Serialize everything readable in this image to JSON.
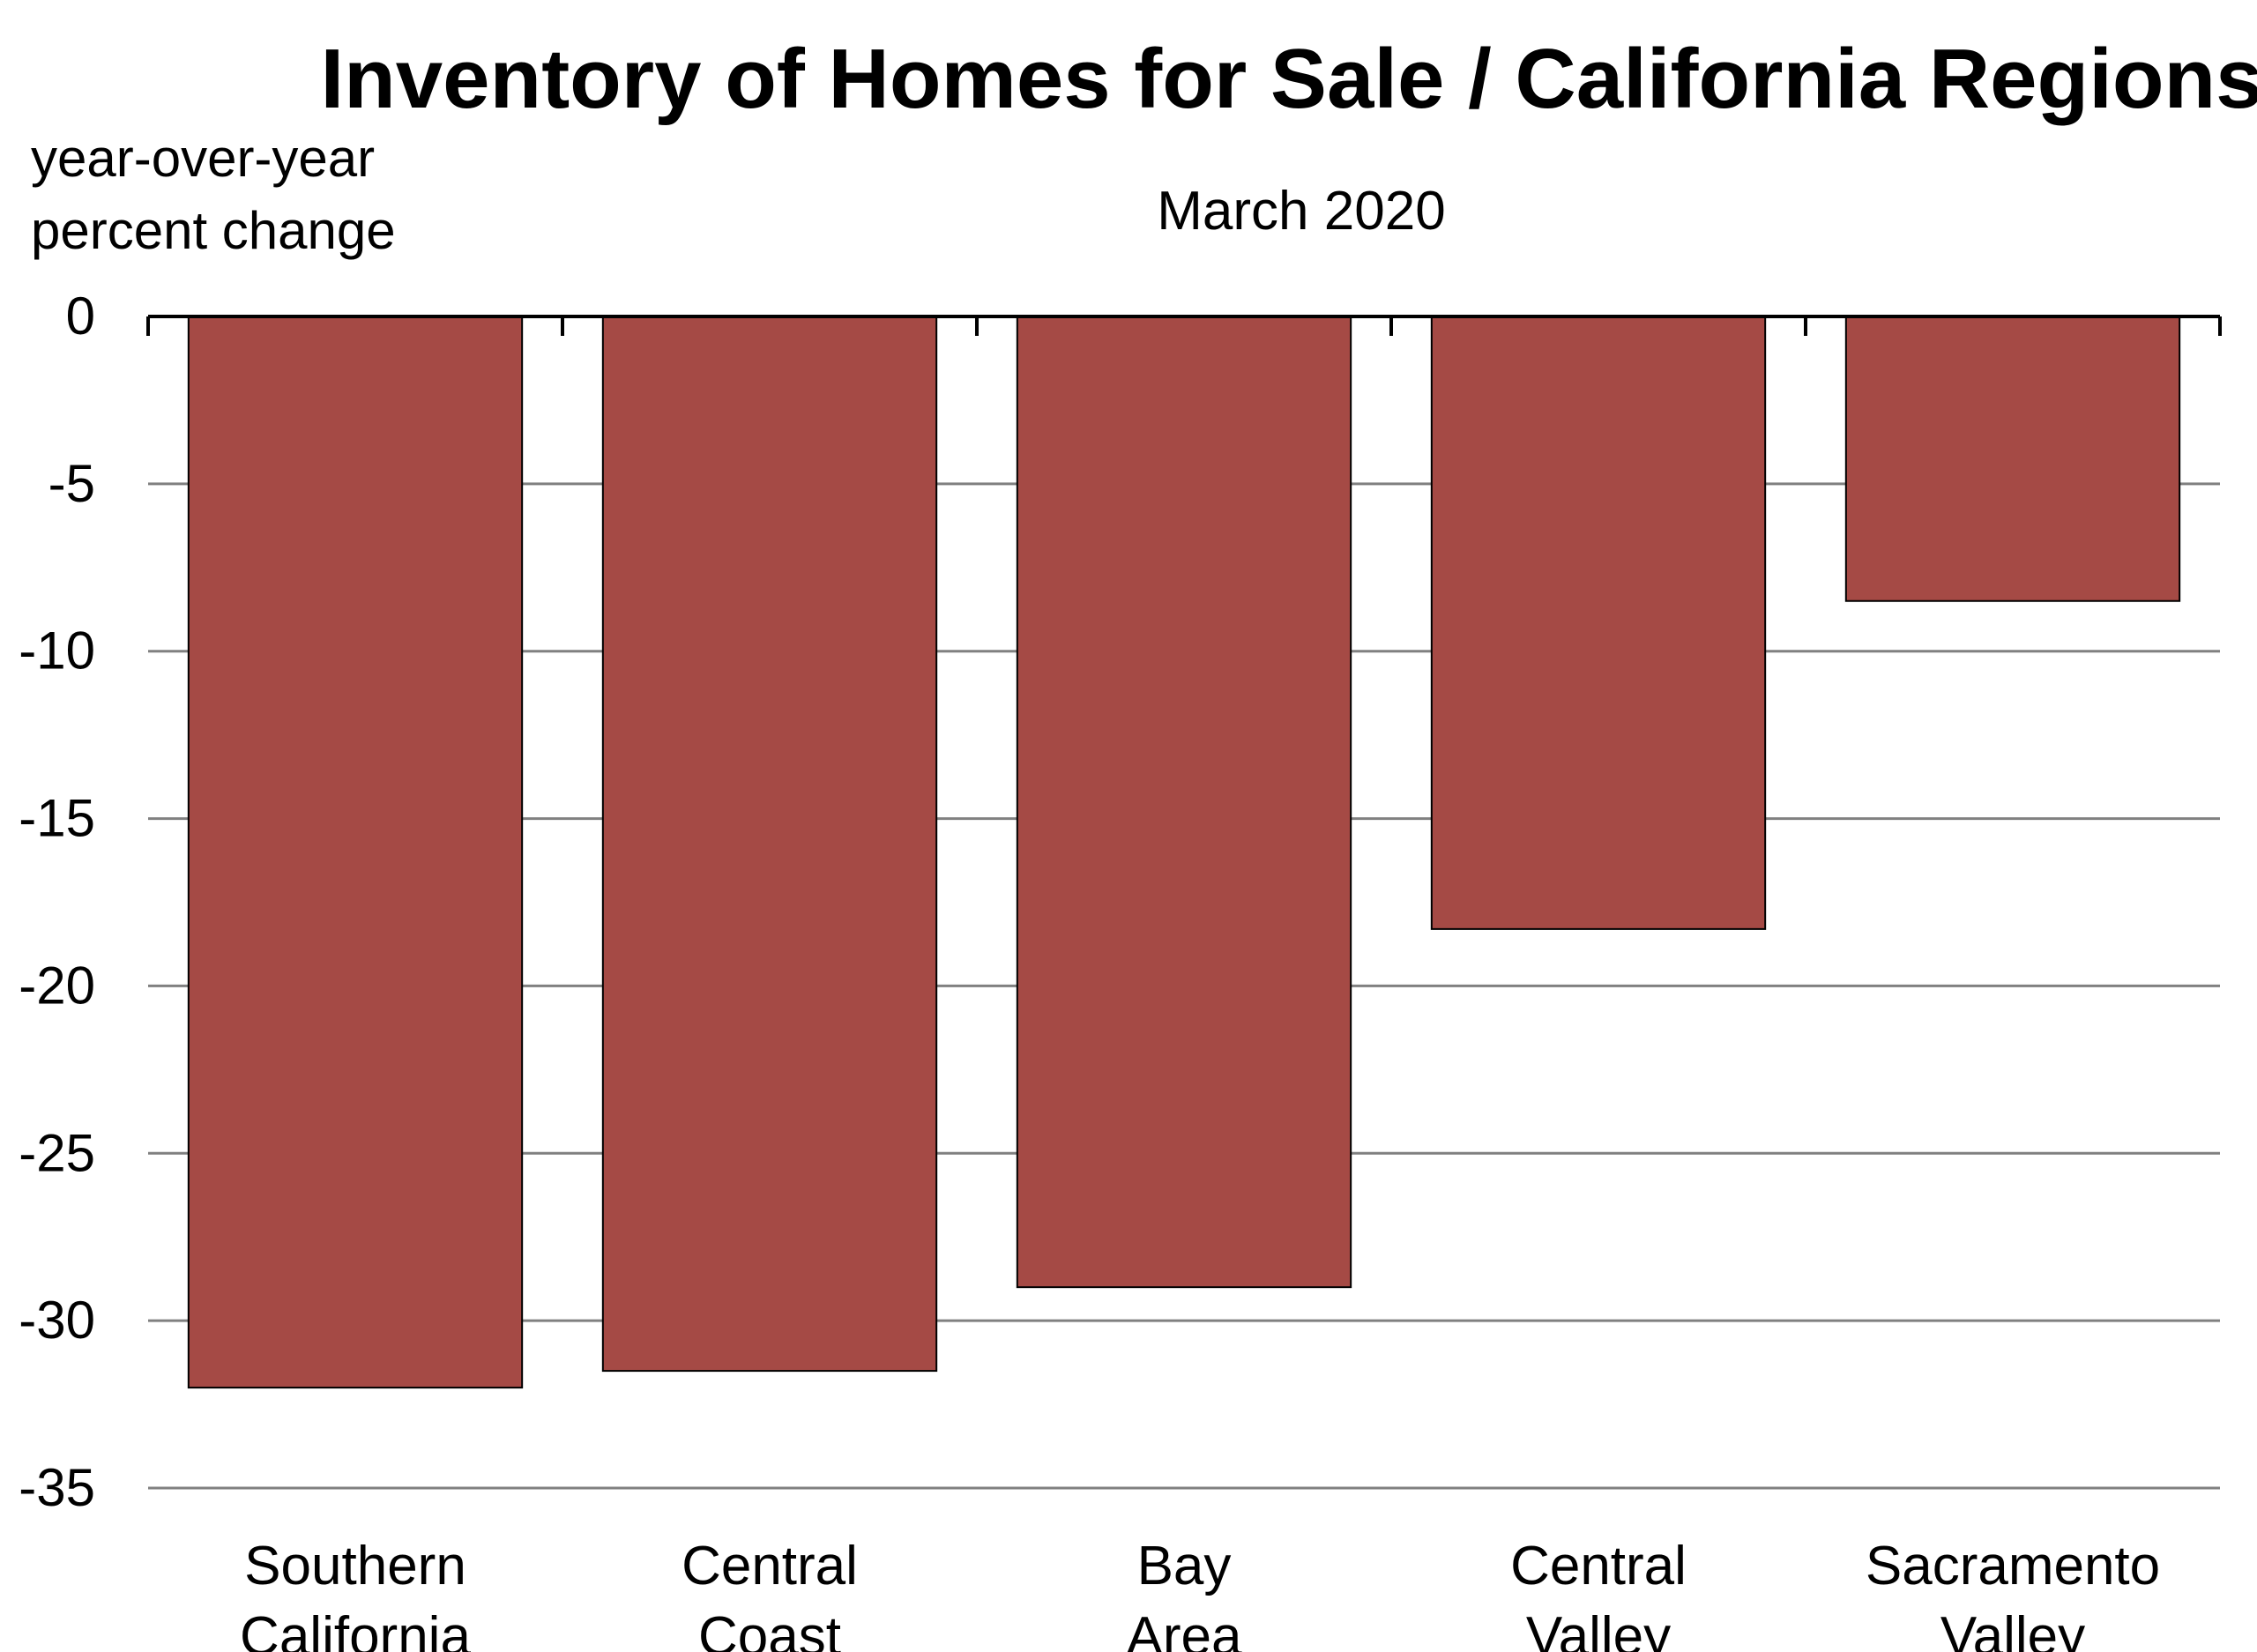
{
  "chart_data": {
    "type": "bar",
    "title": "Inventory of Homes for Sale / California Regions",
    "subtitle": "March 2020",
    "ylabel_lines": [
      "year-over-year",
      "percent change"
    ],
    "xlabel": "",
    "categories": [
      [
        "Southern",
        "California"
      ],
      [
        "Central",
        "Coast"
      ],
      [
        "Bay",
        "Area"
      ],
      [
        "Central",
        "Valley"
      ],
      [
        "Sacramento",
        "Valley"
      ]
    ],
    "values": [
      -32.0,
      -31.5,
      -29.0,
      -18.3,
      -8.5
    ],
    "ylim": [
      -35,
      0
    ],
    "yticks": [
      0,
      -5,
      -10,
      -15,
      -20,
      -25,
      -30,
      -35
    ],
    "grid": true,
    "legend": "none",
    "colors": {
      "bar": "#a54a45",
      "bar_stroke": "#000000",
      "grid": "#808080",
      "axis": "#000000"
    }
  }
}
